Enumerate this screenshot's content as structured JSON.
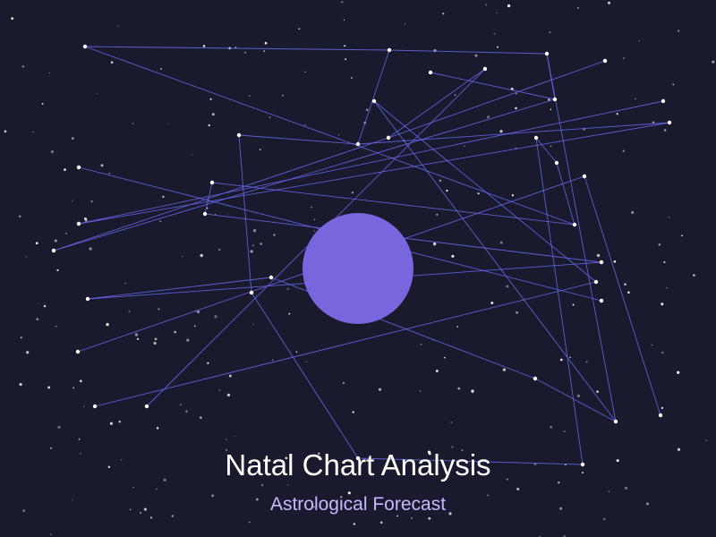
{
  "title": "Natal Chart Analysis",
  "subtitle": "Astrological Forecast",
  "colors": {
    "background": "#1a1a2e",
    "planet": "#7766dd",
    "constellation_line": "#6a6af0",
    "constellation_star": "#ffffff",
    "title": "#ffffff",
    "subtitle": "#c8b8ff"
  }
}
